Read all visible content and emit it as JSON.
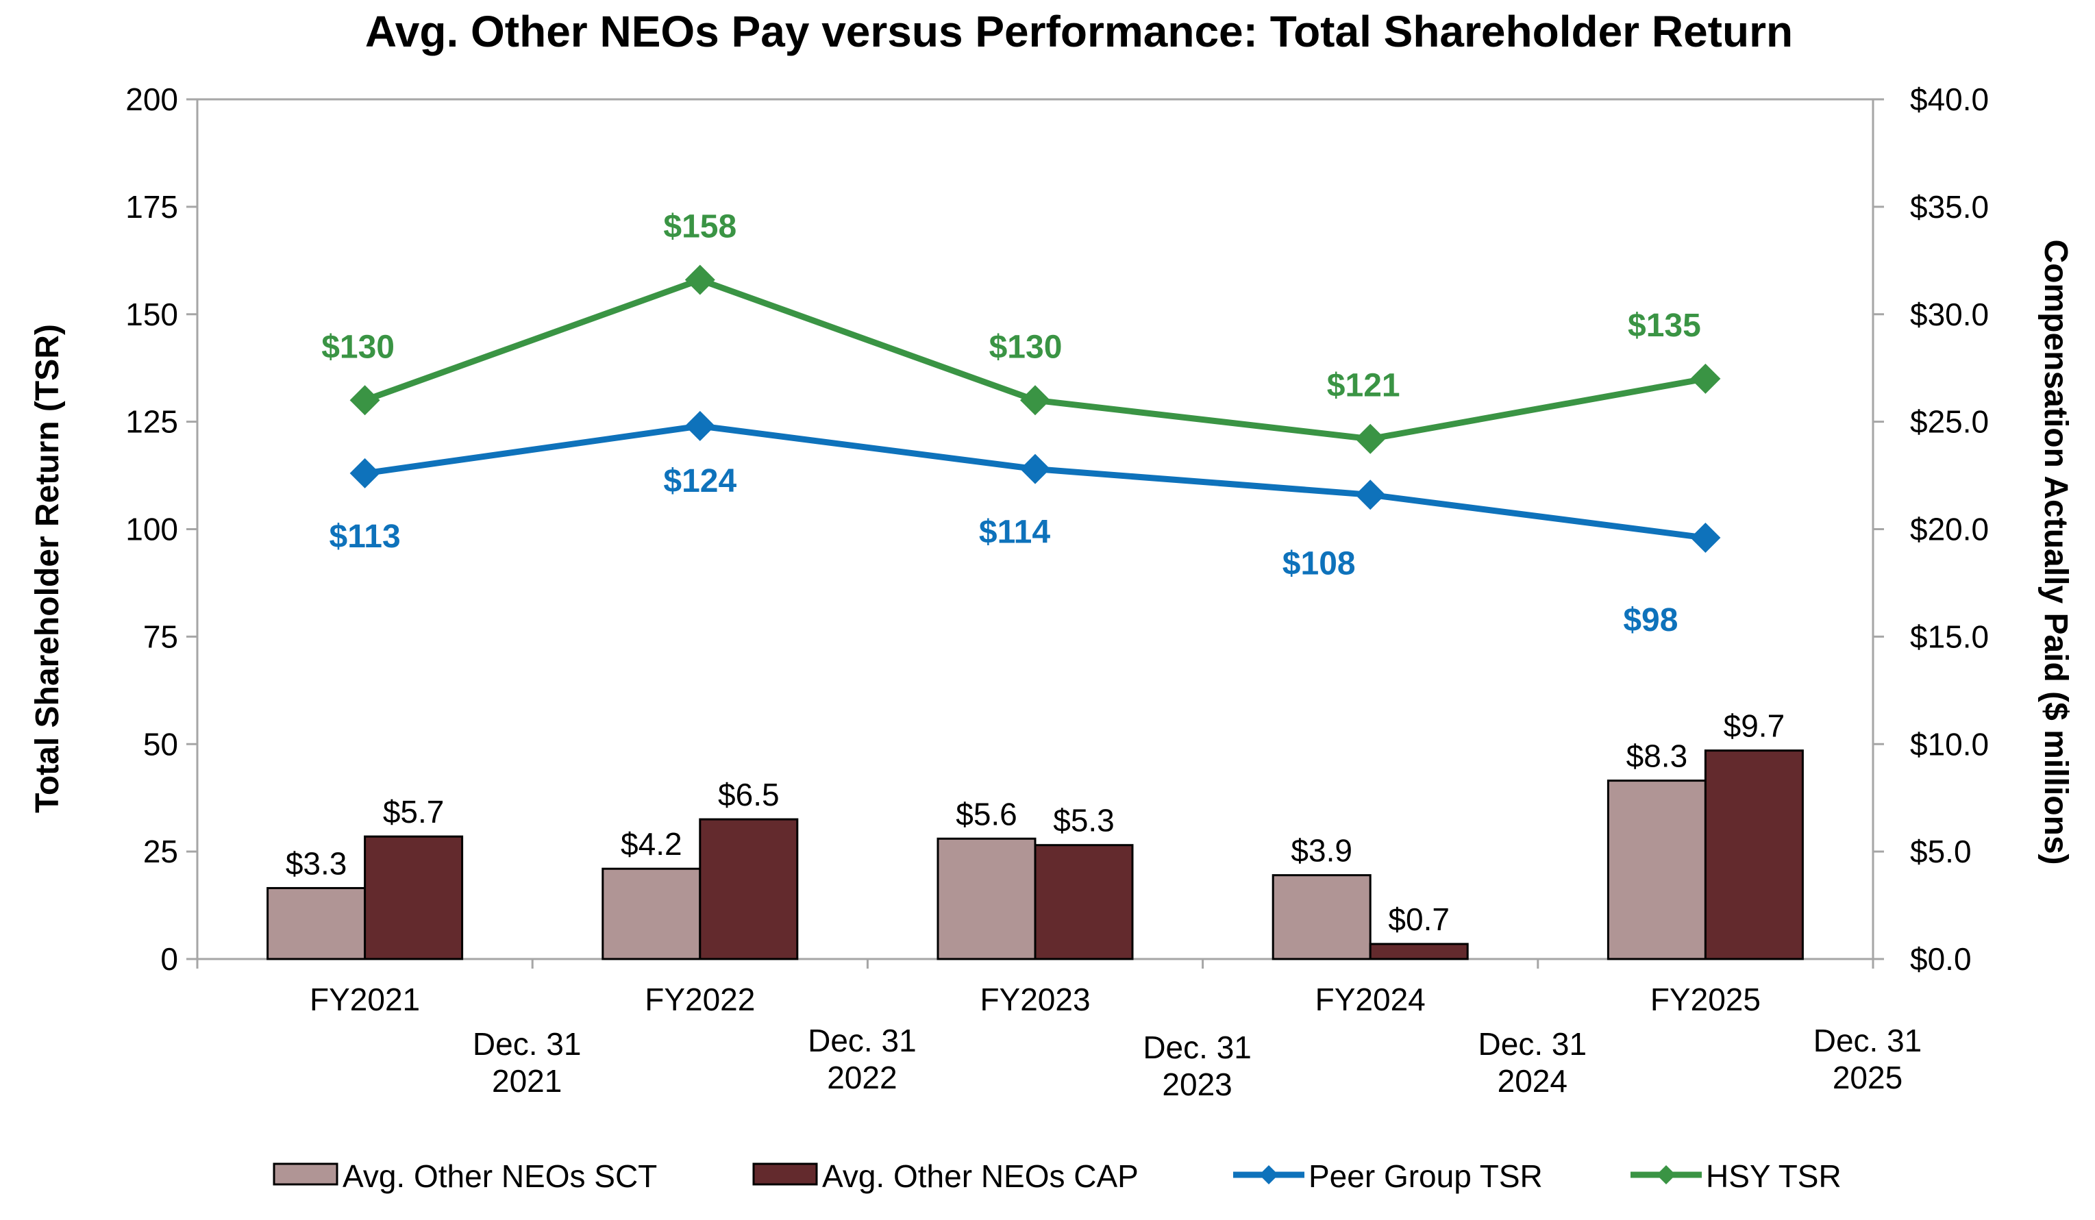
{
  "chart_data": {
    "type": "bar",
    "title": "Avg. Other NEOs Pay versus Performance: Total Shareholder Return",
    "categories": [
      "FY2021",
      "FY2022",
      "FY2023",
      "FY2024",
      "FY2025"
    ],
    "dates": [
      [
        "Dec. 31",
        "2021"
      ],
      [
        "Dec. 31",
        "2022"
      ],
      [
        "Dec. 31",
        "2023"
      ],
      [
        "Dec. 31",
        "2024"
      ],
      [
        "Dec. 31",
        "2025"
      ]
    ],
    "y_left": {
      "label": "Total Shareholder Return (TSR)",
      "ylim": [
        0,
        200
      ],
      "ticks": [
        "0",
        "25",
        "50",
        "75",
        "100",
        "125",
        "150",
        "175",
        "200"
      ]
    },
    "y_right": {
      "label": "Compensation Actually Paid ($ millions)",
      "ylim": [
        0,
        40
      ],
      "ticks": [
        "$0.0",
        "$5.0",
        "$10.0",
        "$15.0",
        "$20.0",
        "$25.0",
        "$30.0",
        "$35.0",
        "$40.0"
      ]
    },
    "bar_series": [
      {
        "name": "Avg. Other NEOs SCT",
        "color": "#b09595",
        "values": [
          3.3,
          4.2,
          5.6,
          3.9,
          8.3
        ],
        "labels": [
          "$3.3",
          "$4.2",
          "$5.6",
          "$3.9",
          "$8.3"
        ]
      },
      {
        "name": "Avg. Other NEOs CAP",
        "color": "#632a2d",
        "values": [
          5.7,
          6.5,
          5.3,
          0.7,
          9.7
        ],
        "labels": [
          "$5.7",
          "$6.5",
          "$5.3",
          "$0.7",
          "$9.7"
        ]
      }
    ],
    "line_series": [
      {
        "name": "Peer Group TSR",
        "color": "#0e72bb",
        "values": [
          113,
          124,
          114,
          108,
          98
        ],
        "labels": [
          "$113",
          "$124",
          "$114",
          "$108",
          "$98"
        ],
        "label_position": "below"
      },
      {
        "name": "HSY TSR",
        "color": "#3a9444",
        "values": [
          130,
          158,
          130,
          121,
          135
        ],
        "labels": [
          "$130",
          "$158",
          "$130",
          "$121",
          "$135"
        ],
        "label_position": "above"
      }
    ],
    "legend": [
      "Avg. Other NEOs SCT",
      "Avg. Other NEOs CAP",
      "Peer Group TSR",
      "HSY TSR"
    ],
    "legend_position": "bottom",
    "grid": false
  }
}
